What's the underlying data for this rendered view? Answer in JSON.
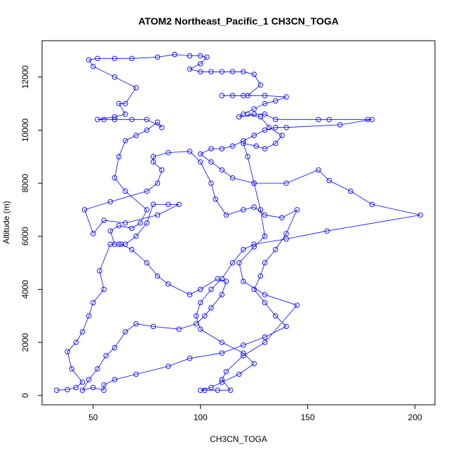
{
  "chart_data": {
    "type": "line",
    "title": "ATOM2 Northeast_Pacific_1 CH3CN_TOGA",
    "x_label": "CH3CN_TOGA",
    "y_label": "Altitude (m)",
    "color": "#0000ff",
    "marker": "circle",
    "xlim": [
      26.2,
      209.3
    ],
    "xticks": [
      50,
      100,
      150,
      200
    ],
    "ylim": [
      -350,
      13370
    ],
    "yticks": [
      0,
      2000,
      4000,
      6000,
      8000,
      10000,
      12000
    ],
    "x": [
      33,
      38,
      42,
      45,
      40,
      38,
      42,
      45,
      48,
      50,
      55,
      53,
      58,
      62,
      65,
      70,
      75,
      78,
      85,
      90,
      80,
      65,
      55,
      50,
      46,
      58,
      75,
      80,
      82,
      78,
      78,
      85,
      95,
      100,
      105,
      107,
      112,
      120,
      125,
      130,
      138,
      145,
      140,
      135,
      130,
      128,
      125,
      130,
      135,
      140,
      130,
      120,
      110,
      95,
      85,
      70,
      60,
      55,
      55,
      50,
      45,
      48,
      52,
      56,
      60,
      65,
      70,
      78,
      90,
      98,
      102,
      105,
      110,
      112,
      108,
      100,
      95,
      85,
      80,
      75,
      68,
      63,
      60,
      58,
      62,
      68,
      72,
      75,
      65,
      60,
      62,
      65,
      70,
      75,
      80,
      82,
      75,
      68,
      60,
      55,
      52,
      60,
      65,
      62,
      65,
      70,
      60,
      50,
      48,
      52,
      60,
      68,
      80,
      88,
      95,
      100,
      103,
      100,
      95,
      100,
      105,
      110,
      115,
      120,
      125,
      128,
      122,
      115,
      110,
      120,
      130,
      140,
      135,
      130,
      125,
      120,
      118,
      125,
      130,
      135,
      155,
      160,
      178,
      180,
      165,
      140,
      135,
      130,
      125,
      120,
      115,
      110,
      105,
      100,
      105,
      110,
      115,
      125,
      140,
      155,
      160,
      170,
      180,
      202.5,
      159,
      140,
      125,
      120,
      115,
      110,
      105,
      100,
      98,
      100,
      110,
      120,
      125,
      118,
      110,
      105,
      100,
      102,
      108,
      114,
      110,
      112,
      120,
      130,
      145,
      130,
      120,
      118,
      125,
      130,
      128,
      125,
      122,
      120,
      126,
      130,
      135,
      138,
      132,
      128,
      122
    ],
    "values": [
      200,
      220,
      300,
      500,
      1000,
      1650,
      2000,
      2400,
      3000,
      3500,
      4000,
      4700,
      5700,
      5700,
      5700,
      6000,
      6500,
      7200,
      7200,
      7200,
      6800,
      6500,
      6600,
      6100,
      7000,
      7300,
      7700,
      8000,
      8500,
      8800,
      9000,
      9150,
      9200,
      8800,
      8000,
      7400,
      6800,
      7000,
      7100,
      6800,
      6700,
      7000,
      6100,
      5500,
      5000,
      4500,
      4000,
      3500,
      3000,
      2600,
      2200,
      1900,
      1600,
      1400,
      1100,
      800,
      600,
      400,
      200,
      300,
      200,
      600,
      1000,
      1500,
      1800,
      2400,
      2700,
      2600,
      2500,
      2700,
      3000,
      3300,
      3800,
      4300,
      4400,
      4000,
      3800,
      4200,
      4500,
      5000,
      5500,
      5700,
      5700,
      6200,
      6400,
      6300,
      6500,
      7000,
      7700,
      8200,
      9000,
      9600,
      9800,
      10000,
      10300,
      10100,
      10400,
      10400,
      10400,
      10400,
      10400,
      10500,
      10600,
      11000,
      11000,
      11600,
      12000,
      12400,
      12650,
      12700,
      12700,
      12700,
      12750,
      12850,
      12800,
      12800,
      12750,
      12500,
      12300,
      12200,
      12200,
      12200,
      12200,
      12200,
      12100,
      11700,
      11300,
      11300,
      11300,
      11300,
      11300,
      11250,
      11100,
      11000,
      10800,
      10600,
      10500,
      10600,
      10600,
      10400,
      10400,
      10400,
      10400,
      10400,
      10200,
      10100,
      10100,
      10000,
      9800,
      9600,
      9400,
      9300,
      9300,
      9100,
      8800,
      8500,
      8200,
      8000,
      8000,
      8500,
      8100,
      7700,
      7200,
      6800,
      6200,
      5900,
      5700,
      5500,
      5000,
      4400,
      4000,
      3500,
      3000,
      2500,
      2000,
      1600,
      1200,
      800,
      500,
      300,
      200,
      200,
      200,
      200,
      600,
      900,
      1500,
      2000,
      3400,
      3800,
      4300,
      5000,
      5600,
      6000,
      7000,
      8000,
      9000,
      9500,
      9400,
      9300,
      9500,
      9800,
      10100,
      10500,
      10600
    ]
  }
}
